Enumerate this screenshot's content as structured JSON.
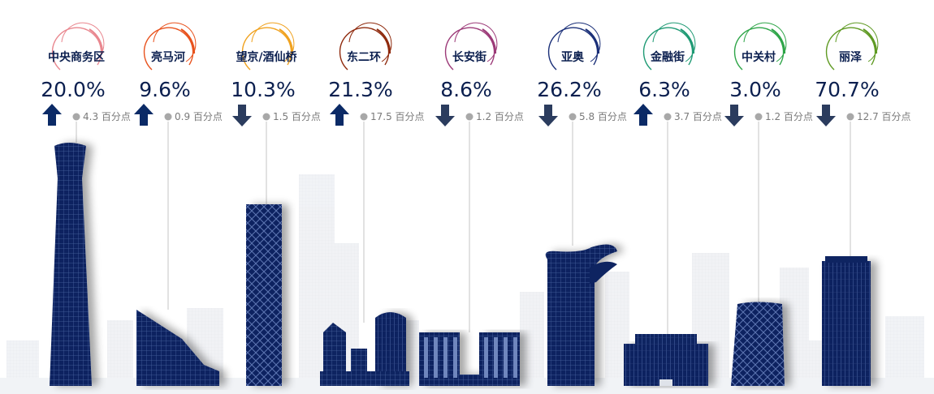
{
  "colors": {
    "building": "#0e2461",
    "building_light": "#3c5590",
    "arrow": "#0b1f4f",
    "text": "#0b1f4f",
    "muted": "#7a7a7a",
    "skyline": "#c9ced6"
  },
  "chart_data": {
    "type": "bar",
    "title": "",
    "unit": "%",
    "change_unit": "百分点",
    "categories": [
      "中央商务区",
      "亮马河",
      "望京/酒仙桥",
      "东二环",
      "长安街",
      "亚奥",
      "金融街",
      "中关村",
      "丽泽"
    ],
    "values": [
      20.0,
      9.6,
      10.3,
      21.3,
      8.6,
      26.2,
      6.3,
      3.0,
      70.7
    ],
    "value_labels": [
      "20.0%",
      "9.6%",
      "10.3%",
      "21.3%",
      "8.6%",
      "26.2%",
      "6.3%",
      "3.0%",
      "70.7%"
    ],
    "changes": [
      4.3,
      0.9,
      -1.5,
      17.5,
      -1.2,
      -5.8,
      3.7,
      -1.2,
      -12.7
    ],
    "change_labels": [
      "4.3 百分点",
      "0.9 百分点",
      "1.5 百分点",
      "17.5 百分点",
      "1.2 百分点",
      "5.8 百分点",
      "3.7 百分点",
      "1.2 百分点",
      "12.7 百分点"
    ],
    "directions": [
      "up",
      "up",
      "down",
      "up",
      "down",
      "down",
      "up",
      "down",
      "down"
    ],
    "ring_colors": [
      "#e9878f",
      "#e8521d",
      "#f0a21f",
      "#8f2a0d",
      "#9c3a78",
      "#1a2f78",
      "#1f9a74",
      "#2ea548",
      "#5f9a23"
    ],
    "building_styles": [
      "cctv",
      "wedge",
      "tower",
      "cluster",
      "gate",
      "wave",
      "low",
      "lattice",
      "tall"
    ]
  }
}
